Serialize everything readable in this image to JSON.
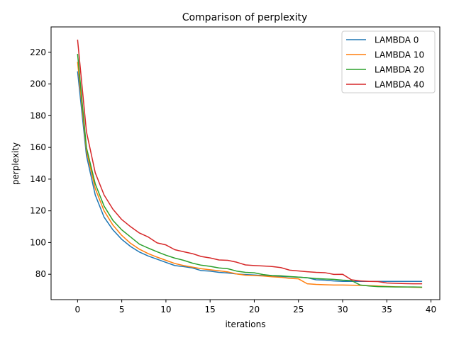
{
  "chart_data": {
    "type": "line",
    "title": "Comparison of perplexity",
    "xlabel": "iterations",
    "ylabel": "perplexity",
    "xlim": [
      -3,
      41
    ],
    "ylim": [
      64,
      236
    ],
    "xticks": [
      0,
      5,
      10,
      15,
      20,
      25,
      30,
      35,
      40
    ],
    "yticks": [
      80,
      100,
      120,
      140,
      160,
      180,
      200,
      220
    ],
    "grid": false,
    "legend": "top-right",
    "x": [
      0,
      1,
      2,
      3,
      4,
      5,
      6,
      7,
      8,
      9,
      10,
      11,
      12,
      13,
      14,
      15,
      16,
      17,
      18,
      19,
      20,
      21,
      22,
      23,
      24,
      25,
      26,
      27,
      28,
      29,
      30,
      31,
      32,
      33,
      34,
      35,
      36,
      37,
      38,
      39
    ],
    "series": [
      {
        "name": "LAMBDA 0",
        "color": "#1f77b4",
        "values": [
          208,
          155,
          130,
          116,
          108,
          102,
          97.5,
          94,
          91.5,
          89.5,
          87.5,
          85.5,
          84.8,
          84,
          82.3,
          82,
          81.2,
          80.8,
          80.2,
          79.8,
          79.5,
          79.2,
          78.9,
          78.6,
          78.4,
          78.2,
          77.8,
          76.5,
          76.3,
          75.8,
          75.5,
          75.5,
          75.5,
          75.5,
          75.5,
          75.5,
          75.5,
          75.5,
          75.5,
          75.5
        ]
      },
      {
        "name": "LAMBDA 10",
        "color": "#ff7f0e",
        "values": [
          214,
          158,
          134,
          120,
          111,
          104.5,
          99.5,
          95.8,
          93,
          90.8,
          88.8,
          86.8,
          85.5,
          84.5,
          83.5,
          82.8,
          82.2,
          81.5,
          80.2,
          79.4,
          79.2,
          78.9,
          78.4,
          78.1,
          77.4,
          77.1,
          74,
          73.6,
          73.4,
          73.2,
          73.2,
          73.1,
          73,
          72.8,
          72.6,
          72.3,
          72.1,
          72,
          71.8,
          71.7
        ]
      },
      {
        "name": "LAMBDA 20",
        "color": "#2ca02c",
        "values": [
          219,
          160,
          137,
          123,
          114,
          108,
          103.5,
          99,
          96.5,
          94.2,
          92,
          90.2,
          88.8,
          87,
          85.7,
          85,
          84,
          83.5,
          82,
          81.2,
          80.9,
          79.8,
          79.2,
          79,
          78.6,
          78.2,
          77.8,
          77.3,
          77,
          76.8,
          76.3,
          76,
          73.2,
          72.6,
          72.2,
          72.1,
          72,
          72,
          72,
          71.9
        ]
      },
      {
        "name": "LAMBDA 40",
        "color": "#d62728",
        "values": [
          228,
          170,
          144,
          130,
          121,
          114.5,
          110,
          106,
          103.5,
          99.8,
          98.5,
          95.5,
          94.2,
          93,
          91.2,
          90.3,
          89,
          88.8,
          87.6,
          85.9,
          85.5,
          85.2,
          84.9,
          84.2,
          82.6,
          82.1,
          81.6,
          81.2,
          81,
          79.9,
          80,
          76.5,
          75.8,
          75.5,
          75.4,
          74.5,
          74.3,
          74.1,
          74,
          74
        ]
      }
    ]
  }
}
